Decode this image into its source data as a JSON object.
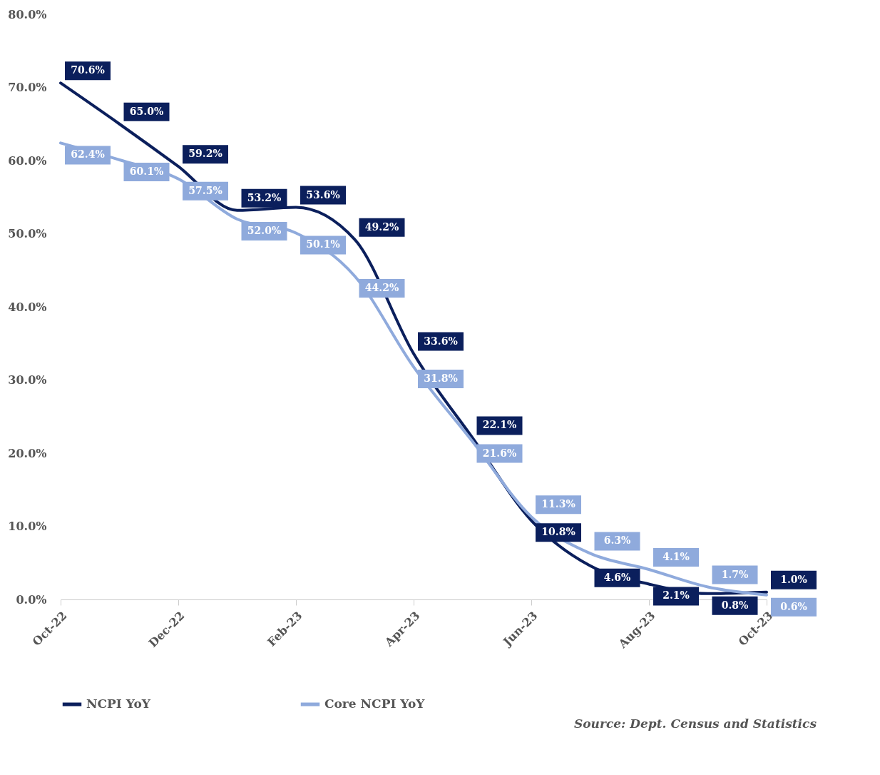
{
  "chart_data": {
    "type": "line",
    "categories": [
      "Oct-22",
      null,
      "Dec-22",
      null,
      "Feb-23",
      null,
      "Apr-23",
      null,
      "Jun-23",
      null,
      "Aug-23",
      null,
      "Oct-23"
    ],
    "series": [
      {
        "name": "NCPI YoY",
        "color": "#0b1f5c",
        "values": [
          70.6,
          65.0,
          59.2,
          53.2,
          53.6,
          49.2,
          33.6,
          22.1,
          10.8,
          4.6,
          2.1,
          0.8,
          1.0
        ],
        "value_labels": [
          "70.6%",
          "65.0%",
          "59.2%",
          "53.2%",
          "53.6%",
          "49.2%",
          "33.6%",
          "22.1%",
          "10.8%",
          "4.6%",
          "2.1%",
          "0.8%",
          "1.0%"
        ]
      },
      {
        "name": "Core NCPI YoY",
        "color": "#8faadc",
        "values": [
          62.4,
          60.1,
          57.5,
          52.0,
          50.1,
          44.2,
          31.8,
          21.6,
          11.3,
          6.3,
          4.1,
          1.7,
          0.6
        ],
        "value_labels": [
          "62.4%",
          "60.1%",
          "57.5%",
          "52.0%",
          "50.1%",
          "44.2%",
          "31.8%",
          "21.6%",
          "11.3%",
          "6.3%",
          "4.1%",
          "1.7%",
          "0.6%"
        ]
      }
    ],
    "ylim": [
      0,
      80
    ],
    "yticks": [
      {
        "value": 0,
        "label": "0.0%"
      },
      {
        "value": 10,
        "label": "10.0%"
      },
      {
        "value": 20,
        "label": "20.0%"
      },
      {
        "value": 30,
        "label": "30.0%"
      },
      {
        "value": 40,
        "label": "40.0%"
      },
      {
        "value": 50,
        "label": "50.0%"
      },
      {
        "value": 60,
        "label": "60.0%"
      },
      {
        "value": 70,
        "label": "70.0%"
      },
      {
        "value": 80,
        "label": "80.0%"
      }
    ],
    "grid": false,
    "legend": "bottom",
    "marker": "none",
    "annotations": [
      "Source: Dept. Census and Statistics"
    ]
  }
}
